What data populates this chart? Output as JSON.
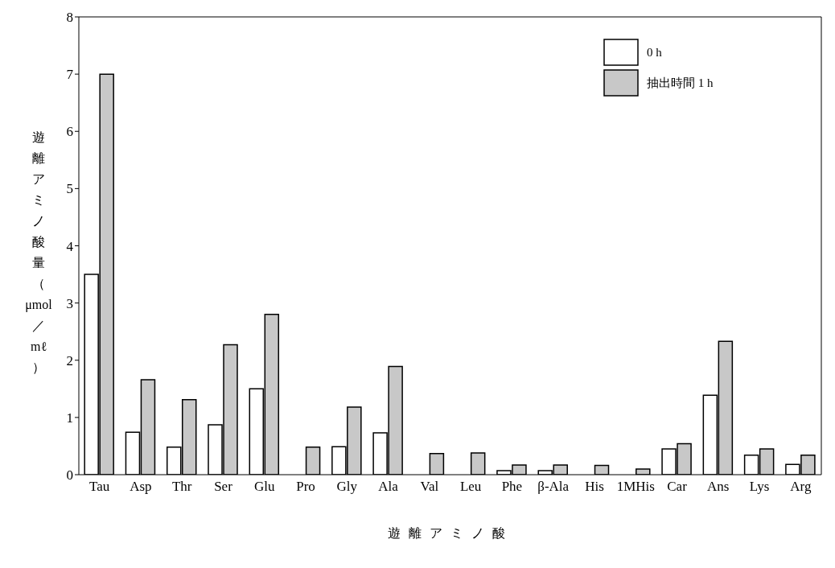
{
  "chart_data": {
    "type": "bar",
    "xlabel": "遊離アミノ酸",
    "ylabel": "遊離アミノ酸量（μmol／mℓ）",
    "categories": [
      "Tau",
      "Asp",
      "Thr",
      "Ser",
      "Glu",
      "Pro",
      "Gly",
      "Ala",
      "Val",
      "Leu",
      "Phe",
      "β-Ala",
      "His",
      "1MHis",
      "Car",
      "Ans",
      "Lys",
      "Arg"
    ],
    "series": [
      {
        "name": "0 h",
        "color": "#ffffff",
        "values": [
          3.5,
          0.74,
          0.48,
          0.87,
          1.5,
          null,
          0.49,
          0.73,
          null,
          null,
          0.07,
          0.07,
          null,
          null,
          0.45,
          1.39,
          0.34,
          0.18
        ]
      },
      {
        "name": "抽出時間 1 h",
        "color": "#c8c8c8",
        "values": [
          7.0,
          1.66,
          1.31,
          2.27,
          2.8,
          0.48,
          1.18,
          1.89,
          0.37,
          0.38,
          0.17,
          0.17,
          0.16,
          0.1,
          0.54,
          2.33,
          0.45,
          0.34
        ]
      }
    ],
    "ylim": [
      0,
      8
    ],
    "yticks": [
      0,
      1,
      2,
      3,
      4,
      5,
      6,
      7,
      8
    ],
    "grid": false,
    "legend": "top right"
  }
}
